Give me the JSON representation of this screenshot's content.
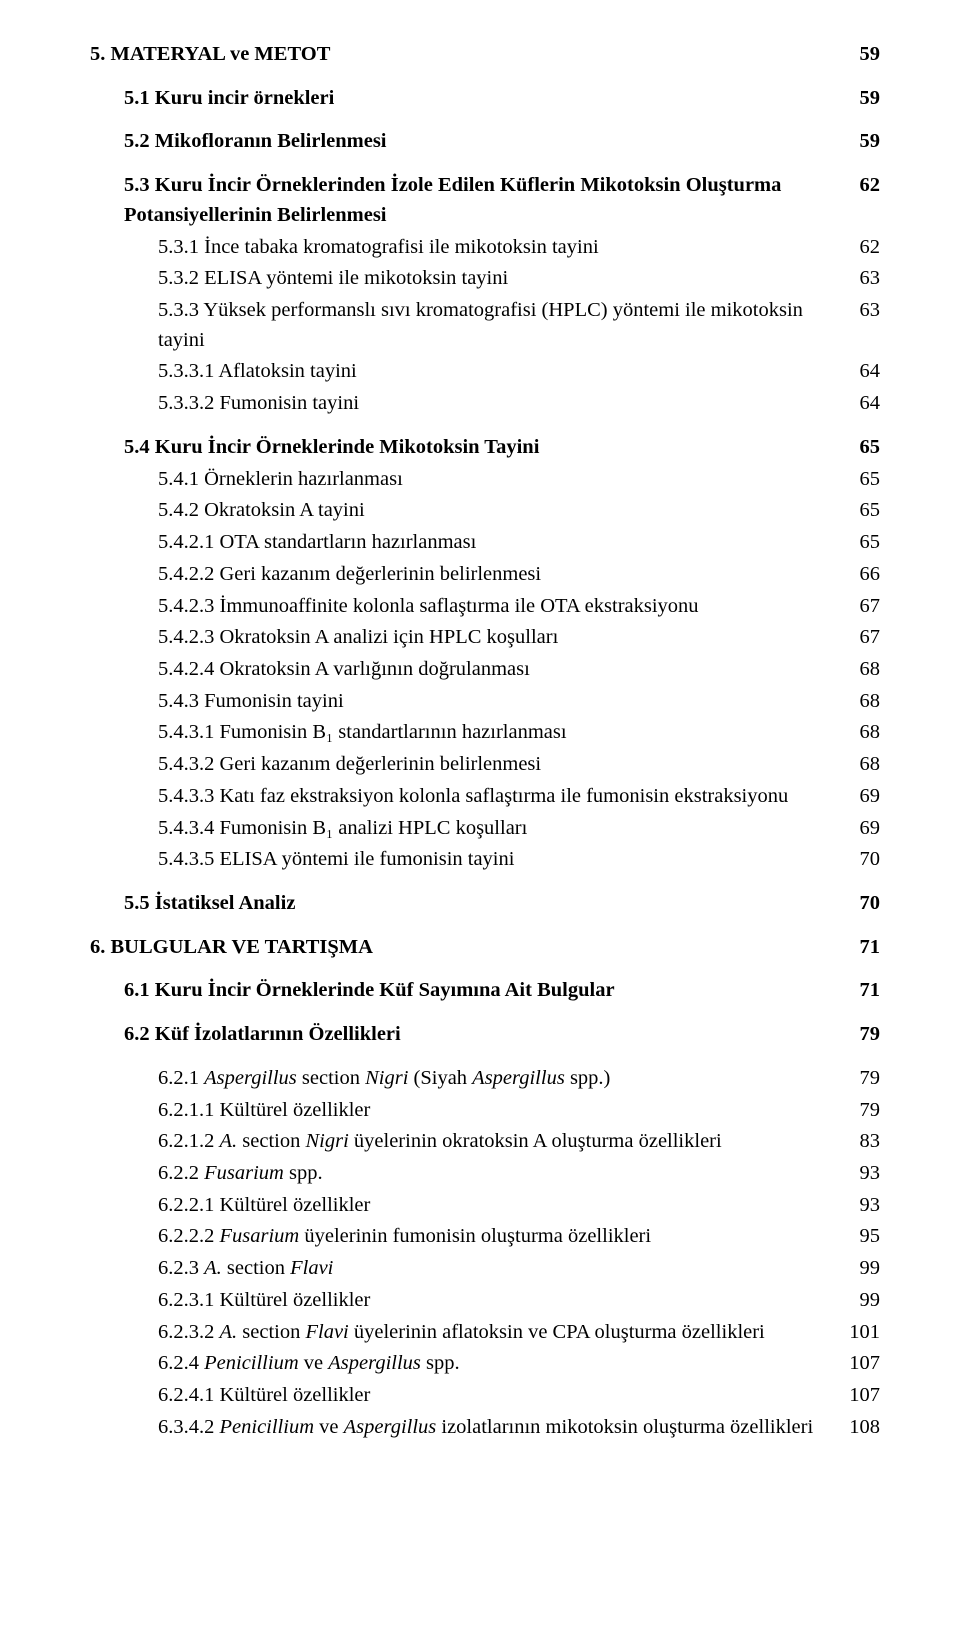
{
  "toc": [
    {
      "indent": 0,
      "bold": true,
      "page": "59",
      "parts": [
        {
          "t": "5. MATERYAL ve METOT"
        }
      ]
    },
    {
      "indent": 1,
      "bold": true,
      "page": "59",
      "gap": true,
      "parts": [
        {
          "t": "5.1 Kuru incir örnekleri"
        }
      ]
    },
    {
      "indent": 1,
      "bold": true,
      "page": "59",
      "gap": true,
      "parts": [
        {
          "t": "5.2 Mikofloranın Belirlenmesi"
        }
      ]
    },
    {
      "indent": 1,
      "bold": true,
      "page": "62",
      "gap": true,
      "wrap": true,
      "parts": [
        {
          "t": "5.3 Kuru İncir Örneklerinden İzole Edilen Küflerin Mikotoksin Oluşturma Potansiyellerinin Belirlenmesi"
        }
      ]
    },
    {
      "indent": 2,
      "bold": false,
      "page": "62",
      "parts": [
        {
          "t": "5.3.1 İnce tabaka kromatografisi ile mikotoksin tayini"
        }
      ]
    },
    {
      "indent": 2,
      "bold": false,
      "page": "63",
      "parts": [
        {
          "t": "5.3.2 ELISA yöntemi ile mikotoksin tayini"
        }
      ]
    },
    {
      "indent": 2,
      "bold": false,
      "page": "63",
      "wrap": true,
      "parts": [
        {
          "t": "5.3.3 Yüksek performanslı sıvı kromatografisi (HPLC) yöntemi ile mikotoksin tayini"
        }
      ]
    },
    {
      "indent": 2,
      "bold": false,
      "page": "64",
      "parts": [
        {
          "t": "5.3.3.1 Aflatoksin tayini"
        }
      ]
    },
    {
      "indent": 2,
      "bold": false,
      "page": "64",
      "parts": [
        {
          "t": "5.3.3.2 Fumonisin tayini"
        }
      ]
    },
    {
      "indent": 1,
      "bold": true,
      "page": "65",
      "gap": true,
      "parts": [
        {
          "t": "5.4 Kuru İncir Örneklerinde Mikotoksin Tayini"
        }
      ]
    },
    {
      "indent": 2,
      "bold": false,
      "page": "65",
      "parts": [
        {
          "t": "5.4.1 Örneklerin hazırlanması"
        }
      ]
    },
    {
      "indent": 2,
      "bold": false,
      "page": "65",
      "parts": [
        {
          "t": "5.4.2 Okratoksin A tayini"
        }
      ]
    },
    {
      "indent": 2,
      "bold": false,
      "page": "65",
      "parts": [
        {
          "t": "5.4.2.1 OTA standartların hazırlanması"
        }
      ]
    },
    {
      "indent": 2,
      "bold": false,
      "page": "66",
      "parts": [
        {
          "t": "5.4.2.2 Geri kazanım değerlerinin belirlenmesi"
        }
      ]
    },
    {
      "indent": 2,
      "bold": false,
      "page": "67",
      "parts": [
        {
          "t": "5.4.2.3 İmmunoaffinite kolonla saflaştırma ile OTA ekstraksiyonu"
        }
      ]
    },
    {
      "indent": 2,
      "bold": false,
      "page": "67",
      "parts": [
        {
          "t": "5.4.2.3 Okratoksin A analizi için HPLC koşulları"
        }
      ]
    },
    {
      "indent": 2,
      "bold": false,
      "page": "68",
      "parts": [
        {
          "t": "5.4.2.4 Okratoksin A varlığının doğrulanması"
        }
      ]
    },
    {
      "indent": 2,
      "bold": false,
      "page": "68",
      "parts": [
        {
          "t": "5.4.3 Fumonisin tayini"
        }
      ]
    },
    {
      "indent": 2,
      "bold": false,
      "page": "68",
      "parts": [
        {
          "t": "5.4.3.1 Fumonisin B₁ standartlarının hazırlanması"
        }
      ]
    },
    {
      "indent": 2,
      "bold": false,
      "page": "68",
      "parts": [
        {
          "t": "5.4.3.2 Geri kazanım değerlerinin belirlenmesi"
        }
      ]
    },
    {
      "indent": 2,
      "bold": false,
      "page": "69",
      "wrap": true,
      "parts": [
        {
          "t": "5.4.3.3 Katı faz ekstraksiyon kolonla saflaştırma ile fumonisin ekstraksiyonu"
        }
      ]
    },
    {
      "indent": 2,
      "bold": false,
      "page": "69",
      "parts": [
        {
          "t": "5.4.3.4 Fumonisin B₁ analizi HPLC koşulları"
        }
      ]
    },
    {
      "indent": 2,
      "bold": false,
      "page": "70",
      "parts": [
        {
          "t": "5.4.3.5 ELISA yöntemi ile fumonisin tayini"
        }
      ]
    },
    {
      "indent": 1,
      "bold": true,
      "page": "70",
      "gap": true,
      "parts": [
        {
          "t": "5.5 İstatiksel Analiz"
        }
      ]
    },
    {
      "indent": 0,
      "bold": true,
      "page": "71",
      "gap": true,
      "parts": [
        {
          "t": "6. BULGULAR VE TARTIŞMA"
        }
      ]
    },
    {
      "indent": 1,
      "bold": true,
      "page": "71",
      "gap": true,
      "parts": [
        {
          "t": "6.1 Kuru İncir Örneklerinde Küf Sayımına Ait Bulgular"
        }
      ]
    },
    {
      "indent": 1,
      "bold": true,
      "page": "79",
      "gap": true,
      "parts": [
        {
          "t": "6.2 Küf İzolatlarının Özellikleri"
        }
      ]
    },
    {
      "indent": 2,
      "bold": false,
      "page": "79",
      "gap": true,
      "parts": [
        {
          "t": "6.2.1 "
        },
        {
          "t": "Aspergillus",
          "i": true
        },
        {
          "t": " section "
        },
        {
          "t": "Nigri",
          "i": true
        },
        {
          "t": " (Siyah "
        },
        {
          "t": "Aspergillus",
          "i": true
        },
        {
          "t": " spp.)"
        }
      ]
    },
    {
      "indent": 2,
      "bold": false,
      "page": "79",
      "parts": [
        {
          "t": "6.2.1.1 Kültürel özellikler"
        }
      ]
    },
    {
      "indent": 2,
      "bold": false,
      "page": "83",
      "parts": [
        {
          "t": "6.2.1.2 "
        },
        {
          "t": "A.",
          "i": true
        },
        {
          "t": " section "
        },
        {
          "t": "Nigri",
          "i": true
        },
        {
          "t": " üyelerinin okratoksin A oluşturma özellikleri"
        }
      ]
    },
    {
      "indent": 2,
      "bold": false,
      "page": "93",
      "parts": [
        {
          "t": "6.2.2 "
        },
        {
          "t": "Fusarium",
          "i": true
        },
        {
          "t": " spp."
        }
      ]
    },
    {
      "indent": 2,
      "bold": false,
      "page": "93",
      "parts": [
        {
          "t": "6.2.2.1 Kültürel özellikler"
        }
      ]
    },
    {
      "indent": 2,
      "bold": false,
      "page": "95",
      "parts": [
        {
          "t": "6.2.2.2 "
        },
        {
          "t": "Fusarium",
          "i": true
        },
        {
          "t": " üyelerinin fumonisin oluşturma özellikleri"
        }
      ]
    },
    {
      "indent": 2,
      "bold": false,
      "page": "99",
      "parts": [
        {
          "t": "6.2.3 "
        },
        {
          "t": "A.",
          "i": true
        },
        {
          "t": " section "
        },
        {
          "t": "Flavi",
          "i": true
        }
      ]
    },
    {
      "indent": 2,
      "bold": false,
      "page": "99",
      "parts": [
        {
          "t": "6.2.3.1 Kültürel özellikler"
        }
      ]
    },
    {
      "indent": 2,
      "bold": false,
      "page": "101",
      "wrap": true,
      "parts": [
        {
          "t": "6.2.3.2 "
        },
        {
          "t": "A.",
          "i": true
        },
        {
          "t": " section "
        },
        {
          "t": "Flavi",
          "i": true
        },
        {
          "t": " üyelerinin aflatoksin ve CPA oluşturma özellikleri"
        }
      ]
    },
    {
      "indent": 2,
      "bold": false,
      "page": "107",
      "parts": [
        {
          "t": "6.2.4 "
        },
        {
          "t": "Penicillium",
          "i": true
        },
        {
          "t": " ve "
        },
        {
          "t": "Aspergillus",
          "i": true
        },
        {
          "t": " spp."
        }
      ]
    },
    {
      "indent": 2,
      "bold": false,
      "page": "107",
      "parts": [
        {
          "t": "6.2.4.1 Kültürel özellikler"
        }
      ]
    },
    {
      "indent": 2,
      "bold": false,
      "page": "108",
      "wrap": true,
      "parts": [
        {
          "t": "6.3.4.2 "
        },
        {
          "t": "Penicillium",
          "i": true
        },
        {
          "t": " ve "
        },
        {
          "t": "Aspergillus",
          "i": true
        },
        {
          "t": "  izolatlarının mikotoksin oluşturma özellikleri"
        }
      ]
    }
  ]
}
